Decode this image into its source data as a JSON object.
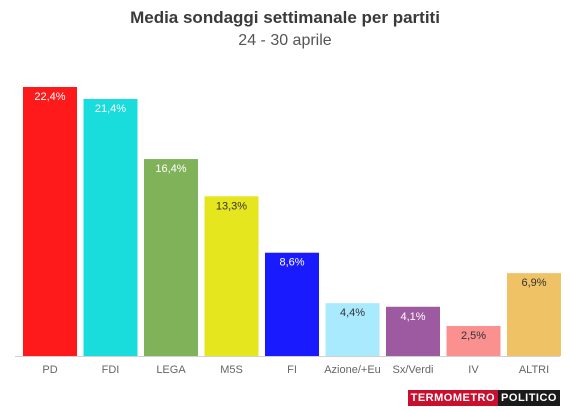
{
  "chart_data": {
    "type": "bar",
    "title": "Media sondaggi settimanale per partiti",
    "subtitle": "24 - 30 aprile",
    "categories": [
      "PD",
      "FDI",
      "LEGA",
      "M5S",
      "FI",
      "Azione/+Eu",
      "Sx/Verdi",
      "IV",
      "ALTRI"
    ],
    "values": [
      22.4,
      21.4,
      16.4,
      13.3,
      8.6,
      4.4,
      4.1,
      2.5,
      6.9
    ],
    "value_labels": [
      "22,4%",
      "21,4%",
      "16,4%",
      "13,3%",
      "8,6%",
      "4,4%",
      "4,1%",
      "2,5%",
      "6,9%"
    ],
    "colors": [
      "#fe1a1a",
      "#19dcdc",
      "#80b25a",
      "#e6e61e",
      "#1a1aff",
      "#aaeaff",
      "#9e5aa0",
      "#fa9090",
      "#f0c266"
    ],
    "label_colors": [
      "#ffffff",
      "#ffffff",
      "#ffffff",
      "#333333",
      "#ffffff",
      "#333333",
      "#ffffff",
      "#333333",
      "#333333"
    ],
    "ylim": [
      0,
      22.4
    ],
    "grid": false,
    "legend": "none"
  },
  "logo": {
    "part1": "TERMOMETRO",
    "part2": "POLITICO"
  }
}
